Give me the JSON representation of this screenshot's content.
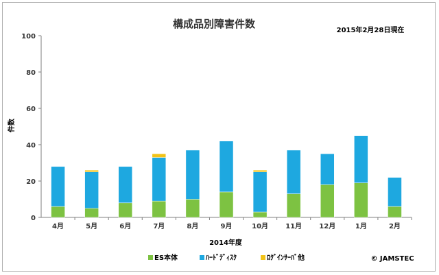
{
  "chart_data": {
    "type": "bar",
    "stacked": true,
    "title": "構成品別障害件数",
    "subtitle": "2015年2月28日現在",
    "xlabel": "2014年度",
    "ylabel": "件数",
    "ylim": [
      0,
      100
    ],
    "yticks": [
      0,
      20,
      40,
      60,
      80,
      100
    ],
    "grid": false,
    "legend_position": "bottom",
    "categories": [
      "4月",
      "5月",
      "6月",
      "7月",
      "8月",
      "9月",
      "10月",
      "11月",
      "12月",
      "1月",
      "2月"
    ],
    "series": [
      {
        "name": "ES本体",
        "color": "#7dc242",
        "values": [
          6,
          5,
          8,
          9,
          10,
          14,
          3,
          13,
          18,
          19,
          6
        ]
      },
      {
        "name": "ﾊｰﾄﾞﾃﾞｨｽｸ",
        "color": "#1ea8e0",
        "values": [
          22,
          20,
          20,
          24,
          27,
          28,
          22,
          24,
          17,
          26,
          16
        ]
      },
      {
        "name": "ﾛｸﾞｲﾝｻｰﾊﾞ他",
        "color": "#f2c318",
        "values": [
          0,
          1,
          0,
          2,
          0,
          0,
          1,
          0,
          0,
          0,
          0
        ]
      }
    ],
    "copyright": "© JAMSTEC"
  }
}
